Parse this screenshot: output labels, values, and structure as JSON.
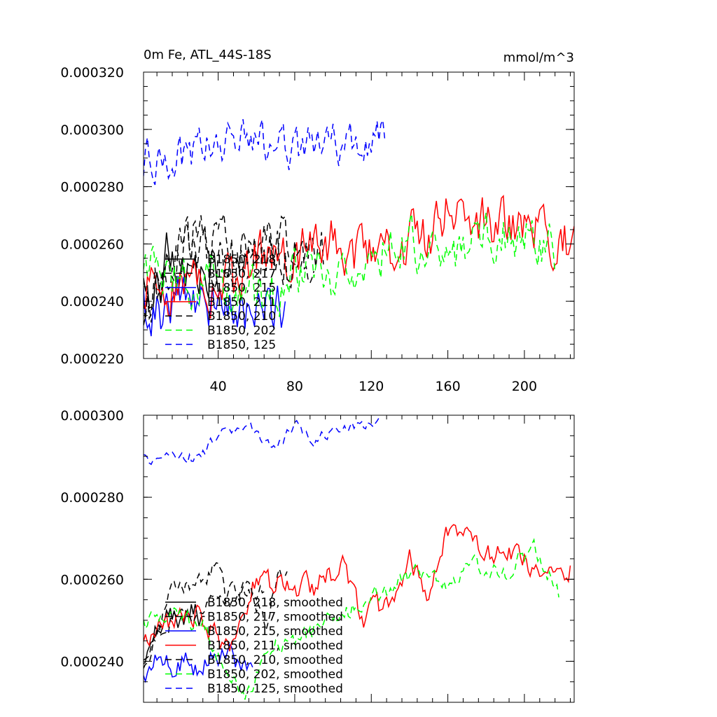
{
  "chart_data": [
    {
      "type": "line",
      "title": "0m Fe, ATL_44S-18S",
      "units": "mmol/m^3",
      "xlabel": "",
      "ylabel": "",
      "xlim": [
        1,
        226
      ],
      "ylim": [
        0.00022,
        0.00032
      ],
      "x_ticks": [
        40,
        80,
        120,
        160,
        200
      ],
      "x_tick_labels": [
        "40",
        "80",
        "120",
        "160",
        "200"
      ],
      "y_ticks": [
        0.00022,
        0.00024,
        0.00026,
        0.00028,
        0.0003,
        0.00032
      ],
      "y_tick_labels": [
        "0.000220",
        "0.000240",
        "0.000260",
        "0.000280",
        "0.000300",
        "0.000320"
      ],
      "legend_position": "lower-left",
      "grid": false,
      "series": [
        {
          "name": "B1850, 218",
          "color": "#000000",
          "dash": "solid",
          "length": 40,
          "base": 0.000248,
          "amp": 8.5e-06,
          "trend": 0.0,
          "seed": 11,
          "anchors": [
            [
              1,
              0.000244
            ],
            [
              8,
              0.000242
            ],
            [
              13,
              0.000256
            ],
            [
              20,
              0.000253
            ],
            [
              26,
              0.000258
            ],
            [
              32,
              0.000248
            ],
            [
              40,
              0.000253
            ]
          ]
        },
        {
          "name": "B1850, 217",
          "color": "#000000",
          "dash": "dashed",
          "length": 95,
          "base": 0.000256,
          "amp": 8.5e-06,
          "trend": 0.0,
          "seed": 23,
          "anchors": [
            [
              1,
              0.000237
            ],
            [
              10,
              0.000243
            ],
            [
              20,
              0.000262
            ],
            [
              25,
              0.000262
            ],
            [
              30,
              0.000265
            ],
            [
              40,
              0.000262
            ],
            [
              50,
              0.000256
            ],
            [
              60,
              0.000257
            ],
            [
              75,
              0.000262
            ],
            [
              85,
              0.000258
            ],
            [
              95,
              0.000258
            ]
          ]
        },
        {
          "name": "B1850, 215",
          "color": "#0000ff",
          "dash": "solid",
          "length": 75,
          "base": 0.00024,
          "amp": 8e-06,
          "trend": 0.0,
          "seed": 37,
          "anchors": [
            [
              1,
              0.00024
            ],
            [
              5,
              0.000233
            ],
            [
              15,
              0.000241
            ],
            [
              25,
              0.000245
            ],
            [
              35,
              0.000239
            ],
            [
              45,
              0.000242
            ],
            [
              55,
              0.000237
            ],
            [
              65,
              0.000241
            ],
            [
              75,
              0.000236
            ]
          ]
        },
        {
          "name": "B1850, 211",
          "color": "#ff0000",
          "dash": "solid",
          "length": 226,
          "base": 0.000258,
          "amp": 8e-06,
          "trend": 0.0,
          "seed": 53,
          "anchors": [
            [
              1,
              0.000246
            ],
            [
              30,
              0.000245
            ],
            [
              50,
              0.000247
            ],
            [
              60,
              0.000257
            ],
            [
              80,
              0.000257
            ],
            [
              100,
              0.000262
            ],
            [
              120,
              0.000254
            ],
            [
              140,
              0.000262
            ],
            [
              150,
              0.000262
            ],
            [
              160,
              0.000273
            ],
            [
              180,
              0.000268
            ],
            [
              200,
              0.000264
            ],
            [
              226,
              0.000262
            ]
          ]
        },
        {
          "name": "B1850, 210",
          "color": "#000000",
          "dash": "dashed",
          "length": 90,
          "base": 0.00025,
          "amp": 8.5e-06,
          "trend": 0.0,
          "seed": 71,
          "anchors": [
            [
              1,
              0.00024
            ],
            [
              10,
              0.000245
            ],
            [
              20,
              0.000258
            ],
            [
              30,
              0.000259
            ],
            [
              40,
              0.000258
            ],
            [
              50,
              0.000257
            ],
            [
              60,
              0.000255
            ],
            [
              70,
              0.000259
            ],
            [
              80,
              0.000253
            ],
            [
              90,
              0.000255
            ]
          ]
        },
        {
          "name": "B1850, 202",
          "color": "#00ff00",
          "dash": "dashed",
          "length": 216,
          "base": 0.000252,
          "amp": 8e-06,
          "trend": 0.0,
          "seed": 89,
          "anchors": [
            [
              1,
              0.000249
            ],
            [
              20,
              0.00025
            ],
            [
              40,
              0.000246
            ],
            [
              55,
              0.000244
            ],
            [
              65,
              0.000242
            ],
            [
              80,
              0.000248
            ],
            [
              100,
              0.000249
            ],
            [
              120,
              0.000255
            ],
            [
              140,
              0.00026
            ],
            [
              160,
              0.000257
            ],
            [
              180,
              0.00026
            ],
            [
              200,
              0.000263
            ],
            [
              216,
              0.000257
            ]
          ]
        },
        {
          "name": "B1850, 125",
          "color": "#0000ff",
          "dash": "dashed",
          "length": 127,
          "base": 0.000293,
          "amp": 6.5e-06,
          "trend": 0.0,
          "seed": 97,
          "anchors": [
            [
              1,
              0.00029
            ],
            [
              10,
              0.000288
            ],
            [
              20,
              0.000289
            ],
            [
              30,
              0.000293
            ],
            [
              40,
              0.000297
            ],
            [
              50,
              0.000296
            ],
            [
              60,
              0.000295
            ],
            [
              70,
              0.000296
            ],
            [
              80,
              0.000292
            ],
            [
              90,
              0.000297
            ],
            [
              100,
              0.000295
            ],
            [
              110,
              0.000296
            ],
            [
              127,
              0.000298
            ]
          ]
        }
      ]
    },
    {
      "type": "line",
      "title": "",
      "xlabel": "",
      "ylabel": "",
      "xlim": [
        1,
        226
      ],
      "ylim": [
        0.00023,
        0.0003
      ],
      "x_ticks": [
        40,
        80,
        120,
        160,
        200
      ],
      "x_tick_labels": [],
      "y_ticks": [
        0.00024,
        0.00026,
        0.00028,
        0.0003
      ],
      "y_tick_labels": [
        "0.000240",
        "0.000260",
        "0.000280",
        "0.000300"
      ],
      "legend_position": "lower-left",
      "grid": false,
      "series": [
        {
          "name": "B1850, 218, smoothed",
          "color": "#000000",
          "dash": "solid",
          "length": 33,
          "amp": 2.5e-06,
          "seed": 111,
          "anchors": [
            [
              1,
              0.00024
            ],
            [
              6,
              0.000246
            ],
            [
              12,
              0.000252
            ],
            [
              18,
              0.00025
            ],
            [
              24,
              0.000251
            ],
            [
              28,
              0.000253
            ],
            [
              33,
              0.000249
            ]
          ]
        },
        {
          "name": "B1850, 217, smoothed",
          "color": "#000000",
          "dash": "dashed",
          "length": 76,
          "amp": 2e-06,
          "seed": 123,
          "anchors": [
            [
              1,
              0.000237
            ],
            [
              8,
              0.000246
            ],
            [
              15,
              0.000258
            ],
            [
              20,
              0.00026
            ],
            [
              25,
              0.000257
            ],
            [
              32,
              0.000259
            ],
            [
              40,
              0.000264
            ],
            [
              45,
              0.000253
            ],
            [
              55,
              0.000257
            ],
            [
              65,
              0.00025
            ],
            [
              72,
              0.000261
            ],
            [
              76,
              0.000262
            ]
          ]
        },
        {
          "name": "B1850, 215, smoothed",
          "color": "#0000ff",
          "dash": "solid",
          "length": 58,
          "amp": 2.5e-06,
          "seed": 137,
          "anchors": [
            [
              1,
              0.000237
            ],
            [
              8,
              0.000242
            ],
            [
              16,
              0.000238
            ],
            [
              24,
              0.000241
            ],
            [
              30,
              0.000236
            ],
            [
              38,
              0.000242
            ],
            [
              46,
              0.000241
            ],
            [
              52,
              0.000238
            ],
            [
              58,
              0.00024
            ]
          ]
        },
        {
          "name": "B1850, 211, smoothed",
          "color": "#ff0000",
          "dash": "solid",
          "length": 224,
          "amp": 2.5e-06,
          "seed": 153,
          "anchors": [
            [
              1,
              0.000244
            ],
            [
              15,
              0.00025
            ],
            [
              30,
              0.000251
            ],
            [
              45,
              0.000242
            ],
            [
              58,
              0.000258
            ],
            [
              70,
              0.000259
            ],
            [
              90,
              0.000258
            ],
            [
              105,
              0.000263
            ],
            [
              115,
              0.00025
            ],
            [
              130,
              0.000255
            ],
            [
              140,
              0.000265
            ],
            [
              150,
              0.000257
            ],
            [
              160,
              0.000272
            ],
            [
              170,
              0.000272
            ],
            [
              180,
              0.000266
            ],
            [
              190,
              0.000268
            ],
            [
              205,
              0.000262
            ],
            [
              215,
              0.000262
            ],
            [
              224,
              0.000263
            ]
          ]
        },
        {
          "name": "B1850, 210, smoothed",
          "color": "#000000",
          "dash": "dashed",
          "length": 64,
          "amp": 2e-06,
          "seed": 171,
          "anchors": [
            [
              1,
              0.000242
            ],
            [
              10,
              0.000247
            ],
            [
              20,
              0.000253
            ],
            [
              30,
              0.00025
            ],
            [
              40,
              0.000256
            ],
            [
              50,
              0.000258
            ],
            [
              58,
              0.000256
            ],
            [
              64,
              0.000257
            ]
          ]
        },
        {
          "name": "B1850, 202, smoothed",
          "color": "#00ff00",
          "dash": "dashed",
          "length": 218,
          "amp": 2e-06,
          "seed": 189,
          "anchors": [
            [
              1,
              0.000249
            ],
            [
              20,
              0.000251
            ],
            [
              35,
              0.000247
            ],
            [
              45,
              0.000236
            ],
            [
              55,
              0.000232
            ],
            [
              65,
              0.000243
            ],
            [
              80,
              0.000245
            ],
            [
              100,
              0.00025
            ],
            [
              120,
              0.000256
            ],
            [
              140,
              0.00026
            ],
            [
              150,
              0.000262
            ],
            [
              160,
              0.000258
            ],
            [
              175,
              0.000264
            ],
            [
              190,
              0.000262
            ],
            [
              205,
              0.000268
            ],
            [
              218,
              0.000256
            ]
          ]
        },
        {
          "name": "B1850, 125, smoothed",
          "color": "#0000ff",
          "dash": "dashed",
          "length": 124,
          "amp": 1.2e-06,
          "seed": 197,
          "anchors": [
            [
              1,
              0.00029
            ],
            [
              10,
              0.000288
            ],
            [
              20,
              0.000291
            ],
            [
              30,
              0.000289
            ],
            [
              40,
              0.000296
            ],
            [
              50,
              0.000297
            ],
            [
              60,
              0.000296
            ],
            [
              70,
              0.000291
            ],
            [
              80,
              0.000298
            ],
            [
              90,
              0.000294
            ],
            [
              100,
              0.000296
            ],
            [
              110,
              0.000297
            ],
            [
              124,
              0.000298
            ]
          ]
        }
      ]
    }
  ]
}
